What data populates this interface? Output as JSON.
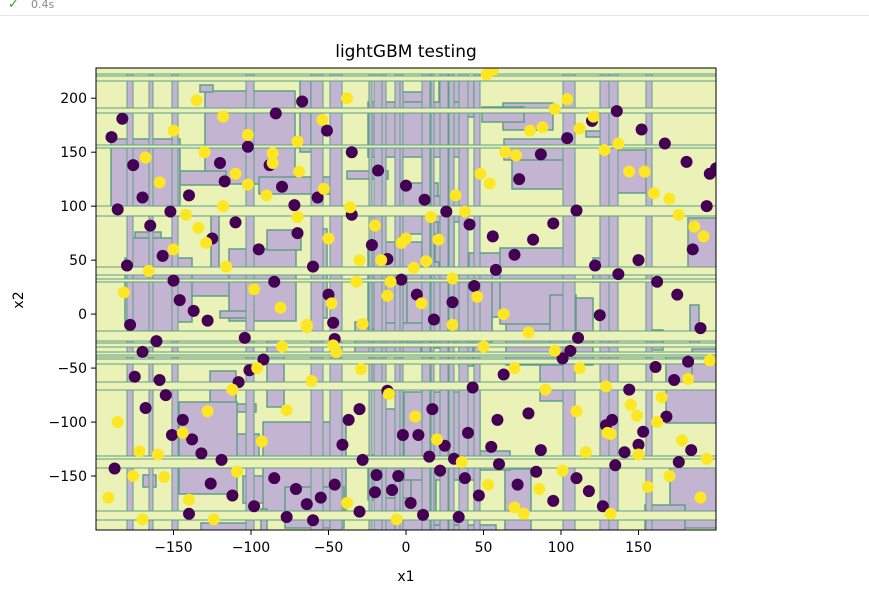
{
  "cell": {
    "status_icon": "check-icon",
    "elapsed": "0.4s"
  },
  "chart_data": {
    "type": "scatter",
    "title": "lightGBM testing",
    "xlabel": "x1",
    "ylabel": "x2",
    "xlim": [
      -200,
      200
    ],
    "ylim": [
      -200,
      228
    ],
    "xticks": [
      -150,
      -100,
      -50,
      0,
      50,
      100,
      150
    ],
    "yticks": [
      -150,
      -100,
      -50,
      0,
      50,
      100,
      150,
      200
    ],
    "xtick_labels": [
      "−150",
      "−100",
      "−50",
      "0",
      "50",
      "100",
      "150"
    ],
    "ytick_labels": [
      "−150",
      "−100",
      "−50",
      "0",
      "50",
      "100",
      "150",
      "200"
    ],
    "background": "decision-region contour (two classes, grid-like rectangular regions)",
    "colors": {
      "class_0": "#440154",
      "class_1": "#fde725",
      "region_0": "#c3b4d1",
      "region_1": "#eaf2b8",
      "boundary": "#5f9f88"
    },
    "series": [
      {
        "class": 0,
        "points": [
          [
            -183,
            181
          ],
          [
            -176,
            138
          ],
          [
            -170,
            108
          ],
          [
            -157,
            54
          ],
          [
            -150,
            31
          ],
          [
            -146,
            13
          ],
          [
            -137,
            3
          ],
          [
            -128,
            -6
          ],
          [
            -117,
            123
          ],
          [
            -104,
            -22
          ],
          [
            -88,
            138
          ],
          [
            -80,
            118
          ],
          [
            -72,
            101
          ],
          [
            -57,
            108
          ],
          [
            -47,
            -8
          ],
          [
            -46,
            -23
          ],
          [
            -37,
            -98
          ],
          [
            -30,
            -88
          ],
          [
            -12,
            -71
          ],
          [
            -2,
            -112
          ],
          [
            8,
            -112
          ],
          [
            17,
            -88
          ],
          [
            25,
            -122
          ],
          [
            31,
            -134
          ],
          [
            38,
            -152
          ],
          [
            43,
            -68
          ],
          [
            59,
            -98
          ],
          [
            63,
            -56
          ],
          [
            79,
            -92
          ],
          [
            87,
            -126
          ],
          [
            101,
            -41
          ],
          [
            106,
            -34
          ],
          [
            111,
            -22
          ],
          [
            125,
            -1
          ],
          [
            129,
            -103
          ],
          [
            133,
            -98
          ],
          [
            144,
            -70
          ],
          [
            150,
            -121
          ],
          [
            161,
            -49
          ],
          [
            173,
            -61
          ],
          [
            182,
            -44
          ],
          [
            190,
            -13
          ],
          [
            -161,
            -25
          ],
          [
            -155,
            -75
          ],
          [
            -144,
            -98
          ],
          [
            -138,
            -116
          ],
          [
            -132,
            -129
          ],
          [
            -119,
            -135
          ],
          [
            -108,
            -63
          ],
          [
            -101,
            -52
          ],
          [
            -92,
            -42
          ],
          [
            -85,
            -152
          ],
          [
            -71,
            -162
          ],
          [
            -64,
            -176
          ],
          [
            -55,
            -170
          ],
          [
            -46,
            -158
          ],
          [
            -41,
            -121
          ],
          [
            -28,
            -135
          ],
          [
            -19,
            -149
          ],
          [
            -9,
            -163
          ],
          [
            3,
            -175
          ],
          [
            11,
            -186
          ],
          [
            22,
            -145
          ],
          [
            34,
            -188
          ],
          [
            47,
            -168
          ],
          [
            60,
            -139
          ],
          [
            72,
            -158
          ],
          [
            84,
            -146
          ],
          [
            95,
            -173
          ],
          [
            110,
            -152
          ],
          [
            118,
            -164
          ],
          [
            127,
            -178
          ],
          [
            135,
            -140
          ],
          [
            141,
            -128
          ],
          [
            153,
            -109
          ],
          [
            168,
            -95
          ],
          [
            176,
            -137
          ],
          [
            184,
            -126
          ],
          [
            -188,
            -143
          ],
          [
            -175,
            -58
          ],
          [
            -168,
            -87
          ],
          [
            -159,
            -61
          ],
          [
            -151,
            -112
          ],
          [
            -140,
            -185
          ],
          [
            -126,
            -157
          ],
          [
            -112,
            -168
          ],
          [
            -98,
            -178
          ],
          [
            -77,
            -188
          ],
          [
            -60,
            -191
          ],
          [
            -30,
            -183
          ],
          [
            -20,
            -165
          ],
          [
            -5,
            -150
          ],
          [
            15,
            -132
          ],
          [
            40,
            -110
          ],
          [
            55,
            -123
          ],
          [
            -180,
            45
          ],
          [
            -165,
            82
          ],
          [
            -152,
            95
          ],
          [
            -140,
            110
          ],
          [
            -125,
            70
          ],
          [
            -110,
            85
          ],
          [
            -95,
            60
          ],
          [
            -85,
            30
          ],
          [
            -70,
            75
          ],
          [
            -60,
            44
          ],
          [
            -50,
            18
          ],
          [
            -35,
            92
          ],
          [
            -22,
            64
          ],
          [
            -12,
            51
          ],
          [
            -3,
            32
          ],
          [
            7,
            18
          ],
          [
            18,
            -5
          ],
          [
            30,
            11
          ],
          [
            44,
            26
          ],
          [
            58,
            41
          ],
          [
            70,
            55
          ],
          [
            82,
            69
          ],
          [
            95,
            84
          ],
          [
            110,
            96
          ],
          [
            122,
            45
          ],
          [
            137,
            37
          ],
          [
            150,
            50
          ],
          [
            162,
            30
          ],
          [
            175,
            18
          ],
          [
            185,
            60
          ],
          [
            194,
            100
          ],
          [
            200,
            135
          ],
          [
            -190,
            164
          ],
          [
            -186,
            97
          ],
          [
            -178,
            -10
          ],
          [
            -170,
            -35
          ],
          [
            -120,
            140
          ],
          [
            -102,
            155
          ],
          [
            -84,
            186
          ],
          [
            -67,
            197
          ],
          [
            -51,
            170
          ],
          [
            -35,
            150
          ],
          [
            -18,
            133
          ],
          [
            0,
            119
          ],
          [
            12,
            106
          ],
          [
            26,
            95
          ],
          [
            41,
            83
          ],
          [
            56,
            72
          ],
          [
            73,
            125
          ],
          [
            87,
            148
          ],
          [
            104,
            163
          ],
          [
            120,
            179
          ],
          [
            136,
            188
          ],
          [
            152,
            171
          ],
          [
            167,
            158
          ],
          [
            181,
            141
          ],
          [
            196,
            130
          ]
        ]
      },
      {
        "class": 1,
        "points": [
          [
            -168,
            145
          ],
          [
            -159,
            122
          ],
          [
            -142,
            92
          ],
          [
            -129,
            66
          ],
          [
            -116,
            44
          ],
          [
            -98,
            23
          ],
          [
            -81,
            6
          ],
          [
            -64,
            -12
          ],
          [
            -47,
            -29
          ],
          [
            -29,
            -51
          ],
          [
            -11,
            -74
          ],
          [
            6,
            -95
          ],
          [
            20,
            -116
          ],
          [
            36,
            -137
          ],
          [
            53,
            -158
          ],
          [
            70,
            -179
          ],
          [
            86,
            -162
          ],
          [
            101,
            -145
          ],
          [
            116,
            -128
          ],
          [
            132,
            -111
          ],
          [
            149,
            -94
          ],
          [
            165,
            -77
          ],
          [
            182,
            -60
          ],
          [
            196,
            -43
          ],
          [
            -186,
            -100
          ],
          [
            -172,
            -127
          ],
          [
            -156,
            -151
          ],
          [
            -140,
            -172
          ],
          [
            -124,
            -190
          ],
          [
            -109,
            -146
          ],
          [
            -93,
            -118
          ],
          [
            -77,
            -89
          ],
          [
            -61,
            -62
          ],
          [
            -45,
            -35
          ],
          [
            -28,
            -9
          ],
          [
            -12,
            17
          ],
          [
            5,
            43
          ],
          [
            21,
            69
          ],
          [
            38,
            95
          ],
          [
            54,
            121
          ],
          [
            71,
            147
          ],
          [
            88,
            173
          ],
          [
            104,
            199
          ],
          [
            121,
            183
          ],
          [
            137,
            158
          ],
          [
            154,
            132
          ],
          [
            170,
            107
          ],
          [
            186,
            81
          ],
          [
            -135,
            198
          ],
          [
            -118,
            183
          ],
          [
            -102,
            166
          ],
          [
            -86,
            149
          ],
          [
            -69,
            132
          ],
          [
            -53,
            116
          ],
          [
            -36,
            99
          ],
          [
            -20,
            82
          ],
          [
            -3,
            66
          ],
          [
            13,
            49
          ],
          [
            30,
            33
          ],
          [
            46,
            16
          ],
          [
            63,
            0
          ],
          [
            79,
            -17
          ],
          [
            96,
            -34
          ],
          [
            112,
            -50
          ],
          [
            129,
            -67
          ],
          [
            145,
            -84
          ],
          [
            162,
            -100
          ],
          [
            178,
            -117
          ],
          [
            194,
            -134
          ],
          [
            -192,
            -170
          ],
          [
            -176,
            -150
          ],
          [
            -160,
            -130
          ],
          [
            -144,
            -110
          ],
          [
            -128,
            -90
          ],
          [
            -112,
            -70
          ],
          [
            -96,
            -50
          ],
          [
            -80,
            -30
          ],
          [
            -64,
            -10
          ],
          [
            -48,
            10
          ],
          [
            -32,
            30
          ],
          [
            -16,
            50
          ],
          [
            0,
            70
          ],
          [
            16,
            90
          ],
          [
            32,
            110
          ],
          [
            48,
            130
          ],
          [
            64,
            150
          ],
          [
            80,
            170
          ],
          [
            96,
            190
          ],
          [
            112,
            172
          ],
          [
            128,
            152
          ],
          [
            144,
            132
          ],
          [
            160,
            112
          ],
          [
            176,
            92
          ],
          [
            192,
            72
          ],
          [
            -150,
            170
          ],
          [
            -130,
            150
          ],
          [
            -110,
            130
          ],
          [
            -90,
            110
          ],
          [
            -70,
            90
          ],
          [
            -50,
            70
          ],
          [
            -30,
            50
          ],
          [
            -10,
            30
          ],
          [
            10,
            10
          ],
          [
            30,
            -10
          ],
          [
            50,
            -30
          ],
          [
            70,
            -50
          ],
          [
            90,
            -70
          ],
          [
            110,
            -90
          ],
          [
            130,
            -110
          ],
          [
            150,
            -130
          ],
          [
            170,
            -150
          ],
          [
            190,
            -170
          ],
          [
            -182,
            20
          ],
          [
            -166,
            40
          ],
          [
            -150,
            60
          ],
          [
            -134,
            80
          ],
          [
            -118,
            100
          ],
          [
            -102,
            120
          ],
          [
            -86,
            140
          ],
          [
            -70,
            160
          ],
          [
            -54,
            180
          ],
          [
            -38,
            200
          ],
          [
            52,
            222
          ],
          [
            56,
            226
          ],
          [
            -6,
            -190
          ],
          [
            -38,
            -175
          ],
          [
            -170,
            -190
          ],
          [
            76,
            -185
          ],
          [
            132,
            -185
          ],
          [
            156,
            -160
          ]
        ]
      }
    ]
  }
}
